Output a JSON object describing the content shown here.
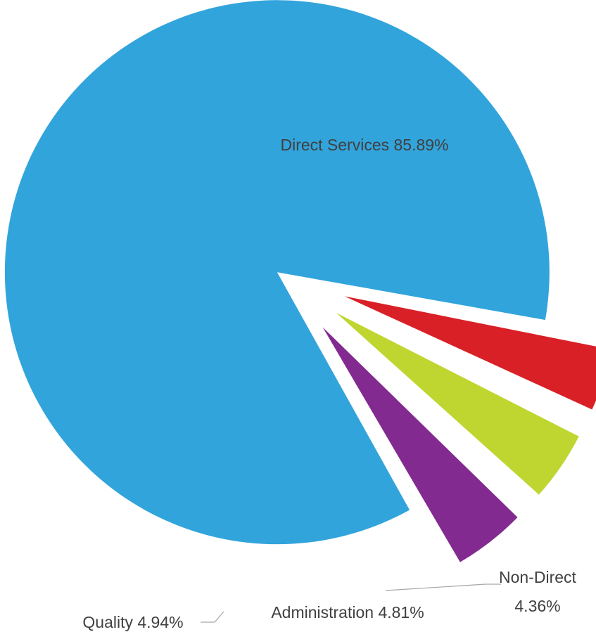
{
  "chart_data": {
    "type": "pie",
    "exploded": true,
    "slices": [
      {
        "name": "Direct Services",
        "value": 85.89,
        "label": "Direct Services 85.89%",
        "color": "#32A4DC"
      },
      {
        "name": "Non-Direct",
        "value": 4.36,
        "label_lines": [
          "Non-Direct",
          "4.36%"
        ],
        "color": "#D92027"
      },
      {
        "name": "Administration",
        "value": 4.81,
        "label": "Administration 4.81%",
        "color": "#BFD630"
      },
      {
        "name": "Quality",
        "value": 4.94,
        "label": "Quality 4.94%",
        "color": "#832A91"
      }
    ]
  }
}
